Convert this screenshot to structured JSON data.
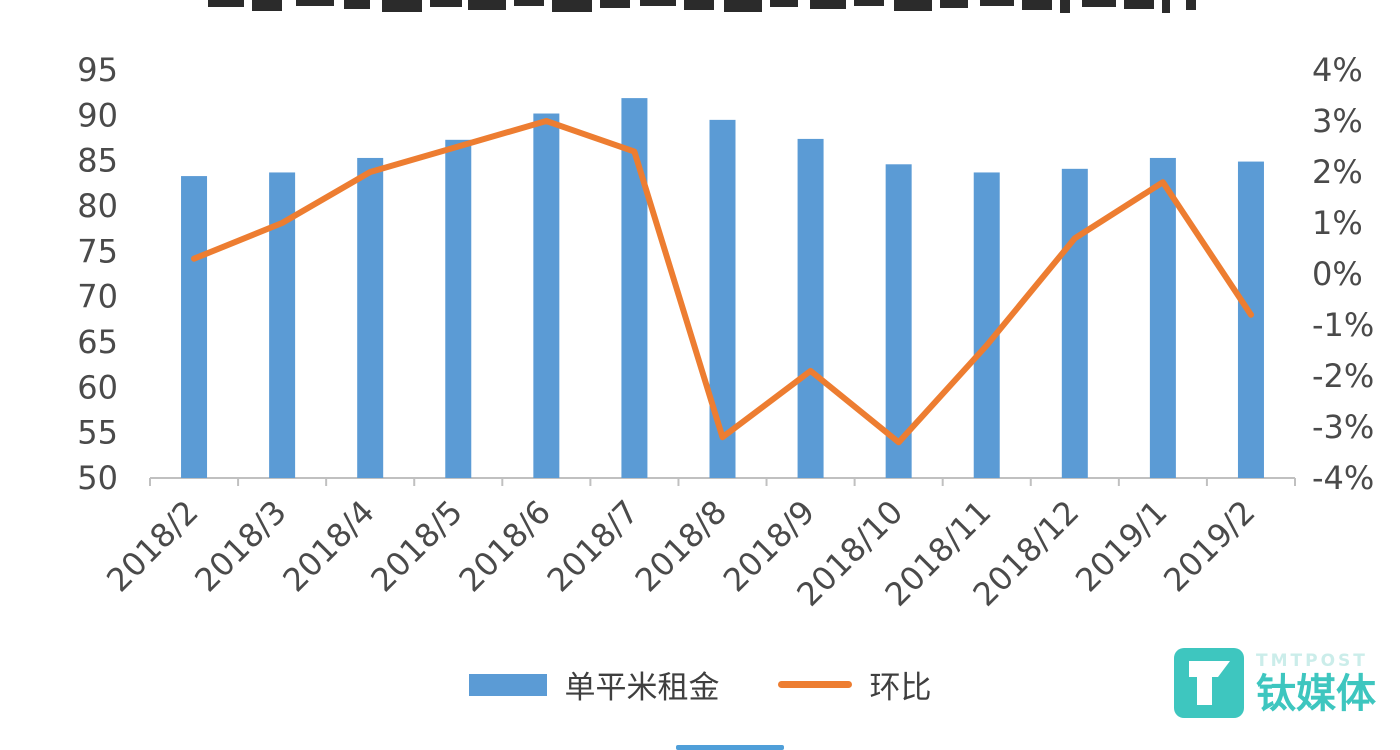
{
  "chart_data": {
    "type": "combo",
    "categories": [
      "2018/2",
      "2018/3",
      "2018/4",
      "2018/5",
      "2018/6",
      "2018/7",
      "2018/8",
      "2018/9",
      "2018/10",
      "2018/11",
      "2018/12",
      "2019/1",
      "2019/2"
    ],
    "series": [
      {
        "name": "单平米租金",
        "type": "bar",
        "axis": "left",
        "color": "#5B9BD5",
        "values": [
          83.3,
          83.7,
          85.3,
          87.3,
          90.2,
          91.9,
          89.5,
          87.4,
          84.6,
          83.7,
          84.1,
          85.3,
          84.9
        ]
      },
      {
        "name": "环比",
        "type": "line",
        "axis": "right",
        "color": "#ED7D31",
        "values": [
          0.3,
          1.0,
          2.0,
          2.5,
          3.0,
          2.4,
          -3.2,
          -1.9,
          -3.3,
          -1.4,
          0.7,
          1.8,
          -0.8
        ]
      }
    ],
    "left_axis": {
      "min": 50,
      "max": 95,
      "step": 5,
      "ticks": [
        "95",
        "90",
        "85",
        "80",
        "75",
        "70",
        "65",
        "60",
        "55",
        "50"
      ]
    },
    "right_axis": {
      "min": -4,
      "max": 4,
      "step": 1,
      "ticks": [
        "4%",
        "3%",
        "2%",
        "1%",
        "0%",
        "-1%",
        "-2%",
        "-3%",
        "-4%"
      ]
    },
    "legend_position": "bottom",
    "grid": false
  },
  "watermark": {
    "brand_en": "TMTPOST",
    "brand_cn": "钛媒体",
    "color": "#3EC6BF",
    "en_color": "#CBEDEA"
  },
  "colors": {
    "axis_line": "#C0C0C0",
    "tick_text": "#4A4A4A",
    "scrollbar": "#4F9FD9",
    "title_fragments": "#2B2B2B"
  }
}
